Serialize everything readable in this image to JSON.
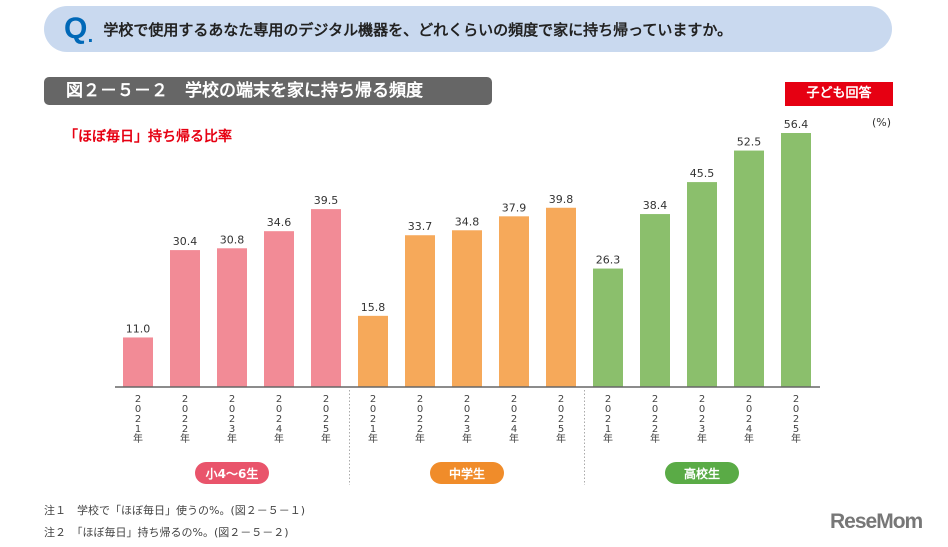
{
  "question": {
    "mark": "Q",
    "text": "学校で使用するあなた専用のデジタル機器を、どれくらいの頻度で家に持ち帰っていますか。"
  },
  "figure_title": "図２－５－２　学校の端末を家に持ち帰る頻度",
  "respondent_badge": "子ども回答",
  "chart_data": {
    "type": "bar",
    "title": "「ほぼ毎日」持ち帰る比率",
    "unit": "(%)",
    "ylim": [
      0,
      60
    ],
    "grid": false,
    "categories": [
      "2021年",
      "2022年",
      "2023年",
      "2024年",
      "2025年"
    ],
    "groups": [
      {
        "name": "小4〜6生",
        "color": "#f28b96",
        "badge_color": "#e9546b",
        "values": [
          11.0,
          30.4,
          30.8,
          34.6,
          39.5
        ]
      },
      {
        "name": "中学生",
        "color": "#f6a95a",
        "badge_color": "#f08c2a",
        "values": [
          15.8,
          33.7,
          34.8,
          37.9,
          39.8
        ]
      },
      {
        "name": "高校生",
        "color": "#8bbf6c",
        "badge_color": "#5aab46",
        "values": [
          26.3,
          38.4,
          45.5,
          52.5,
          56.4
        ]
      }
    ]
  },
  "notes": [
    "注１　学校で「ほぼ毎日」使うの%。(図２－５－１)",
    "注２　「ほぼ毎日」持ち帰るの%。(図２－５－２)"
  ],
  "logo": "ReseMom"
}
